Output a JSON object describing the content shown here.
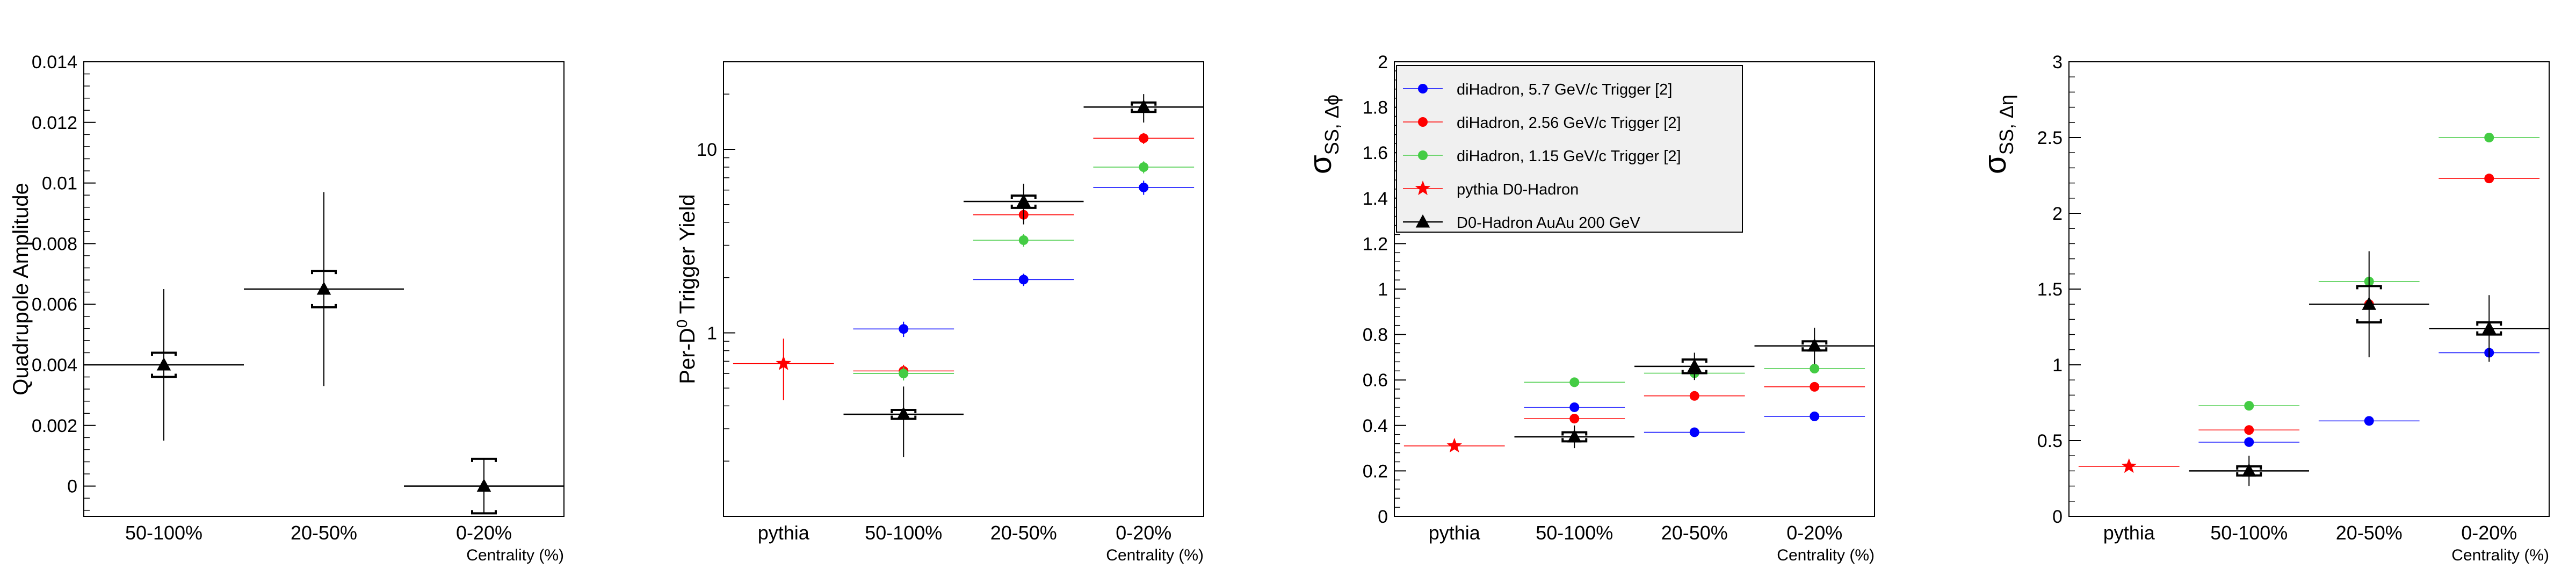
{
  "figure": {
    "xaxis_title": "Centrality (%)"
  },
  "chart_data": [
    {
      "type": "scatter",
      "ylabel": "Quadrupole Amplitude",
      "xlabel": "Centrality (%)",
      "categories": [
        "50-100%",
        "20-50%",
        "0-20%"
      ],
      "ylim": [
        -0.001,
        0.014
      ],
      "yticks": [
        0,
        0.002,
        0.004,
        0.006,
        0.008,
        0.01,
        0.012,
        0.014
      ],
      "ytick_labels": [
        "0",
        "0.002",
        "0.004",
        "0.006",
        "0.008",
        "0.01",
        "0.012",
        "0.014"
      ],
      "series": [
        {
          "marker": "triangle",
          "color": "#000000",
          "values": [
            0.004,
            0.0065,
            0.0
          ],
          "stat_err": [
            0.0025,
            0.0032,
            0.0009
          ],
          "sys_err": [
            0.0004,
            0.0006,
            0.0009
          ]
        }
      ]
    },
    {
      "type": "scatter",
      "ylabel_main": "Per-D",
      "ylabel_sup": "0",
      "ylabel_rest": " Trigger Yield",
      "xlabel": "Centrality (%)",
      "categories": [
        "pythia",
        "50-100%",
        "20-50%",
        "0-20%"
      ],
      "log_y": true,
      "ylim": [
        0.1,
        30
      ],
      "yticks": [
        1,
        10
      ],
      "ytick_labels": [
        "1",
        "10"
      ],
      "series": [
        {
          "marker": "circle",
          "color": "#0000ff",
          "values": [
            null,
            1.05,
            1.95,
            6.2
          ],
          "stat_err": [
            null,
            0.1,
            0.15,
            0.55
          ]
        },
        {
          "marker": "circle",
          "color": "#ff0000",
          "values": [
            null,
            0.62,
            4.4,
            11.5
          ],
          "stat_err": [
            null,
            0.05,
            0.3,
            0.8
          ]
        },
        {
          "marker": "circle",
          "color": "#44cc44",
          "values": [
            null,
            0.6,
            3.2,
            8.0
          ],
          "stat_err": [
            null,
            0.05,
            0.25,
            0.6
          ]
        },
        {
          "marker": "star",
          "color": "#ff0000",
          "values": [
            0.68,
            null,
            null,
            null
          ],
          "stat_err": [
            0.25,
            null,
            null,
            null
          ]
        },
        {
          "marker": "triangle",
          "color": "#000000",
          "values": [
            null,
            0.36,
            5.2,
            17.0
          ],
          "stat_err": [
            null,
            0.15,
            1.3,
            3.0
          ],
          "sys_err": [
            null,
            0.02,
            0.4,
            1.0
          ]
        }
      ]
    },
    {
      "type": "scatter",
      "ylabel_main": "σ",
      "ylabel_sub": "SS, Δϕ",
      "xlabel": "Centrality (%)",
      "categories": [
        "pythia",
        "50-100%",
        "20-50%",
        "0-20%"
      ],
      "ylim": [
        0,
        2
      ],
      "yticks": [
        0,
        0.2,
        0.4,
        0.6,
        0.8,
        1,
        1.2,
        1.4,
        1.6,
        1.8,
        2
      ],
      "ytick_labels": [
        "0",
        "0.2",
        "0.4",
        "0.6",
        "0.8",
        "1",
        "1.2",
        "1.4",
        "1.6",
        "1.8",
        "2"
      ],
      "legend_position": "top-left",
      "series": [
        {
          "name": "diHadron, 5.7 GeV/c Trigger [2]",
          "marker": "circle",
          "color": "#0000ff",
          "values": [
            null,
            0.48,
            0.37,
            0.44
          ]
        },
        {
          "name": "diHadron, 2.56 GeV/c Trigger [2]",
          "marker": "circle",
          "color": "#ff0000",
          "values": [
            null,
            0.43,
            0.53,
            0.57
          ]
        },
        {
          "name": "diHadron, 1.15 GeV/c Trigger [2]",
          "marker": "circle",
          "color": "#44cc44",
          "values": [
            null,
            0.59,
            0.63,
            0.65
          ]
        },
        {
          "name": "pythia D0-Hadron",
          "marker": "star",
          "color": "#ff0000",
          "values": [
            0.31,
            null,
            null,
            null
          ],
          "stat_err": [
            0.01,
            null,
            null,
            null
          ]
        },
        {
          "name": "D0-Hadron AuAu 200 GeV",
          "marker": "triangle",
          "color": "#000000",
          "values": [
            null,
            0.35,
            0.66,
            0.75
          ],
          "stat_err": [
            null,
            0.05,
            0.06,
            0.08
          ],
          "sys_err": [
            null,
            0.02,
            0.03,
            0.02
          ]
        }
      ]
    },
    {
      "type": "scatter",
      "ylabel_main": "σ",
      "ylabel_sub": "SS, Δη",
      "xlabel": "Centrality (%)",
      "categories": [
        "pythia",
        "50-100%",
        "20-50%",
        "0-20%"
      ],
      "ylim": [
        0,
        3
      ],
      "yticks": [
        0,
        0.5,
        1,
        1.5,
        2,
        2.5,
        3
      ],
      "ytick_labels": [
        "0",
        "0.5",
        "1",
        "1.5",
        "2",
        "2.5",
        "3"
      ],
      "series": [
        {
          "marker": "circle",
          "color": "#0000ff",
          "values": [
            null,
            0.49,
            0.63,
            1.08
          ]
        },
        {
          "marker": "circle",
          "color": "#ff0000",
          "values": [
            null,
            0.57,
            1.4,
            2.23
          ]
        },
        {
          "marker": "circle",
          "color": "#44cc44",
          "values": [
            null,
            0.73,
            1.55,
            2.5
          ]
        },
        {
          "marker": "star",
          "color": "#ff0000",
          "values": [
            0.33,
            null,
            null,
            null
          ],
          "stat_err": [
            0.02,
            null,
            null,
            null
          ]
        },
        {
          "marker": "triangle",
          "color": "#000000",
          "values": [
            null,
            0.3,
            1.4,
            1.24
          ],
          "stat_err": [
            null,
            0.1,
            0.35,
            0.22
          ],
          "sys_err": [
            null,
            0.03,
            0.12,
            0.04
          ]
        }
      ]
    }
  ]
}
